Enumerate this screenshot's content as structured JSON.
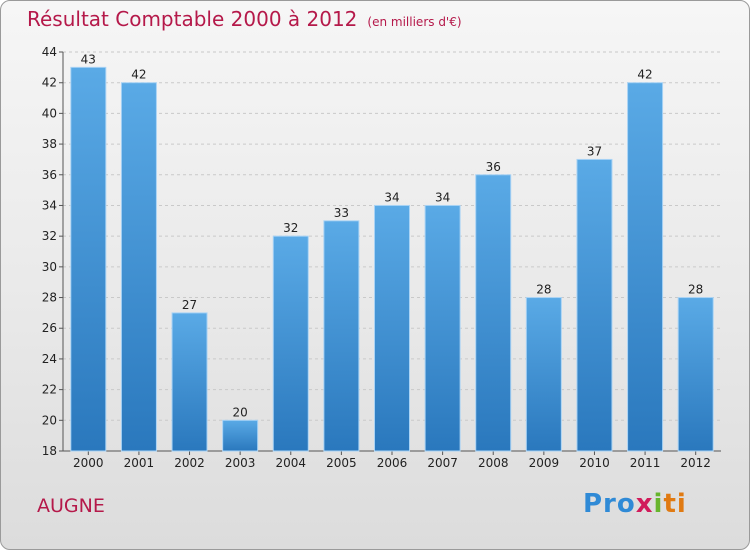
{
  "header": {
    "title": "Résultat Comptable 2000 à 2012",
    "subtitle": "(en milliers d'€)"
  },
  "footer": {
    "town": "AUGNE",
    "logo": {
      "p": "Pro",
      "x": "x",
      "i": "i",
      "ti": "ti"
    }
  },
  "colors": {
    "bar": "#5aaae6",
    "bar_dark": "#2f7fc3",
    "title": "#b5194a"
  },
  "chart_data": {
    "type": "bar",
    "title": "Résultat Comptable 2000 à 2012",
    "subtitle": "(en milliers d'€)",
    "xlabel": "",
    "ylabel": "",
    "categories": [
      "2000",
      "2001",
      "2002",
      "2003",
      "2004",
      "2005",
      "2006",
      "2007",
      "2008",
      "2009",
      "2010",
      "2011",
      "2012"
    ],
    "values": [
      43,
      42,
      27,
      20,
      32,
      33,
      34,
      34,
      36,
      28,
      37,
      42,
      28
    ],
    "ylim": [
      18,
      44
    ],
    "yticks": [
      18,
      20,
      22,
      24,
      26,
      28,
      30,
      32,
      34,
      36,
      38,
      40,
      42,
      44
    ],
    "grid": true
  }
}
